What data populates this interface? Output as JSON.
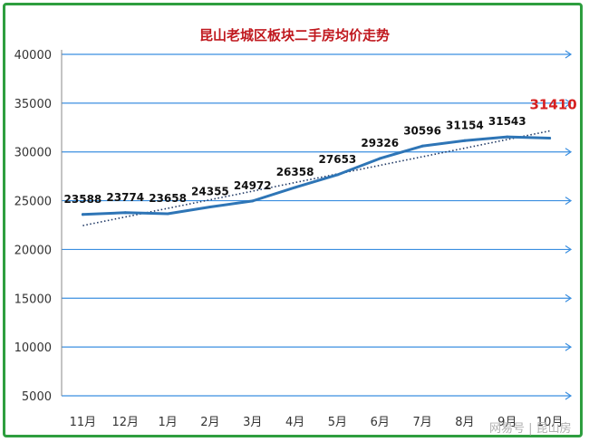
{
  "chart_data": {
    "type": "line",
    "title": "昆山老城区板块二手房均价走势",
    "categories": [
      "11月",
      "12月",
      "1月",
      "2月",
      "3月",
      "4月",
      "5月",
      "6月",
      "7月",
      "8月",
      "9月",
      "10月"
    ],
    "series": [
      {
        "values": [
          23588,
          23774,
          23658,
          24355,
          24972,
          26358,
          27653,
          29326,
          30596,
          31154,
          31543,
          31410
        ],
        "labels": [
          "23588",
          "23774",
          "23658",
          "24355",
          "24972",
          "26358",
          "27653",
          "29326",
          "30596",
          "31154",
          "31543",
          "31410"
        ],
        "color": "#2e75b6"
      }
    ],
    "trendline": {
      "type": "linear",
      "style": "dotted",
      "color": "#1f3864",
      "start": 22450,
      "end": 32150
    },
    "highlight_last": {
      "color": "#d62020"
    },
    "ylim": [
      5000,
      40000
    ],
    "yticks": [
      "5000",
      "10000",
      "15000",
      "20000",
      "25000",
      "30000",
      "35000",
      "40000"
    ],
    "grid": true,
    "gridline_color": "#3b8fe0",
    "xlabel": "",
    "ylabel": ""
  },
  "watermark": "网易号 | 昆山房",
  "colors": {
    "frame": "#2e9e3f",
    "title": "#c0181e",
    "line": "#2e75b6",
    "axis_text": "#333333"
  }
}
